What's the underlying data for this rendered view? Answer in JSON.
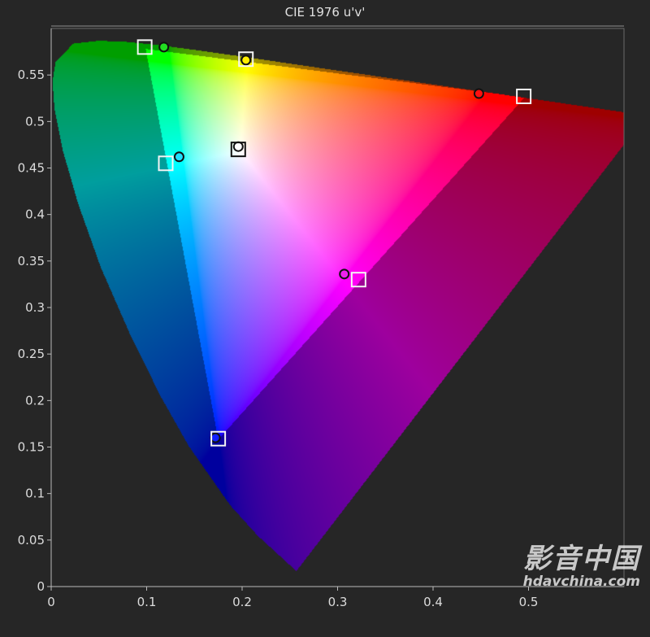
{
  "chart_data": {
    "type": "scatter",
    "title": "CIE 1976 u'v'",
    "xlabel": "",
    "ylabel": "",
    "xlim": [
      0,
      0.6
    ],
    "ylim": [
      0,
      0.6
    ],
    "grid": false,
    "x_ticks": [
      "0",
      "0.1",
      "0.2",
      "0.3",
      "0.4",
      "0.5"
    ],
    "y_ticks": [
      "0",
      "0.05",
      "0.1",
      "0.15",
      "0.2",
      "0.25",
      "0.3",
      "0.35",
      "0.4",
      "0.45",
      "0.5",
      "0.55"
    ],
    "gamut_triangle": [
      [
        0.496,
        0.526
      ],
      [
        0.099,
        0.578
      ],
      [
        0.175,
        0.158
      ]
    ],
    "targets": [
      {
        "point": "red",
        "u": 0.495,
        "v": 0.527
      },
      {
        "point": "green",
        "u": 0.098,
        "v": 0.58
      },
      {
        "point": "blue",
        "u": 0.175,
        "v": 0.159
      },
      {
        "point": "white",
        "u": 0.196,
        "v": 0.47
      },
      {
        "point": "cyan",
        "u": 0.12,
        "v": 0.455
      },
      {
        "point": "yellow",
        "u": 0.204,
        "v": 0.567
      },
      {
        "point": "magenta",
        "u": 0.322,
        "v": 0.33
      }
    ],
    "measured": [
      {
        "point": "red",
        "u": 0.448,
        "v": 0.53,
        "color": "#ff1010"
      },
      {
        "point": "green",
        "u": 0.118,
        "v": 0.58,
        "color": "#22dd22"
      },
      {
        "point": "blue",
        "u": 0.172,
        "v": 0.16,
        "color": "#1020ff"
      },
      {
        "point": "white",
        "u": 0.196,
        "v": 0.473,
        "color": "#ffffff"
      },
      {
        "point": "cyan",
        "u": 0.134,
        "v": 0.462,
        "color": "#20e0ff"
      },
      {
        "point": "yellow",
        "u": 0.204,
        "v": 0.566,
        "color": "#ffee00"
      },
      {
        "point": "magenta",
        "u": 0.307,
        "v": 0.336,
        "color": "#ee22ee"
      }
    ]
  },
  "watermark": {
    "line1": "影音中国",
    "line2": "hdavchina.com"
  }
}
